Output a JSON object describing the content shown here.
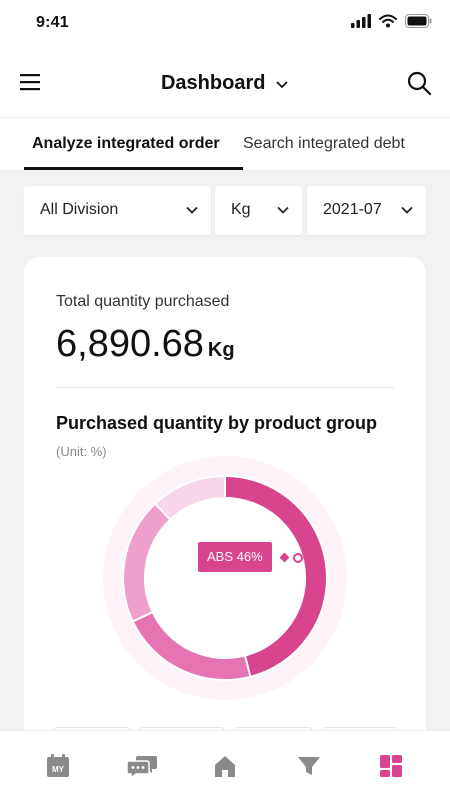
{
  "status_bar": {
    "time": "9:41"
  },
  "header": {
    "title": "Dashboard"
  },
  "tabs": [
    {
      "label": "Analyze integrated order",
      "active": true
    },
    {
      "label": "Search integrated debt",
      "active": false
    }
  ],
  "filters": {
    "division": "All Division",
    "unit": "Kg",
    "period": "2021-07"
  },
  "summary": {
    "label": "Total quantity purchased",
    "value": "6,890.68",
    "unit": "Kg"
  },
  "chart_data": {
    "type": "pie",
    "title": "Purchased quantity by product group",
    "subtitle": "(Unit: %)",
    "categories": [
      "ABS",
      "",
      "",
      ""
    ],
    "values": [
      46,
      22,
      20,
      12
    ],
    "colors": [
      "#d9448f",
      "#e674b2",
      "#ee9fcb",
      "#f8d5e8"
    ],
    "tooltip": {
      "label": "ABS",
      "value_label": "46%"
    }
  },
  "bottom_nav": {
    "items": [
      {
        "icon": "calendar-my-icon",
        "text": "MY"
      },
      {
        "icon": "chat-icon"
      },
      {
        "icon": "home-icon"
      },
      {
        "icon": "filter-icon"
      },
      {
        "icon": "dashboard-grid-icon",
        "active": true
      }
    ],
    "active_color": "#d9448f",
    "inactive_color": "#8a8a8a"
  }
}
